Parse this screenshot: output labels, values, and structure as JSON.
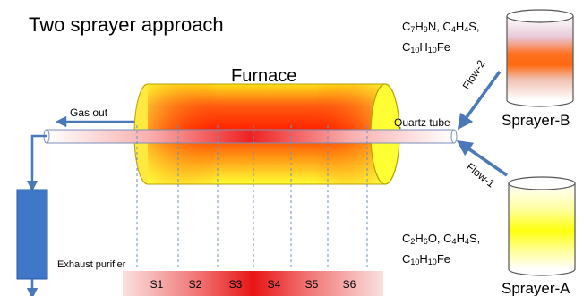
{
  "title": "Two sprayer approach",
  "furnace_label": "Furnace",
  "gas_out_label": "Gas out",
  "quartz_tube_label": "Quartz tube",
  "exhaust_label": "Exhaust purifier",
  "flow_1_label": "Flow-1",
  "flow_2_label": "Flow-2",
  "sprayer_a": {
    "label": "Sprayer-A",
    "formula_line1": [
      {
        "t": "C"
      },
      {
        "t": "2",
        "sub": true
      },
      {
        "t": "H"
      },
      {
        "t": "6",
        "sub": true
      },
      {
        "t": "O, C"
      },
      {
        "t": "4",
        "sub": true
      },
      {
        "t": "H"
      },
      {
        "t": "4",
        "sub": true
      },
      {
        "t": "S,"
      }
    ],
    "formula_line2": [
      {
        "t": "C"
      },
      {
        "t": "10",
        "sub": true
      },
      {
        "t": "H"
      },
      {
        "t": "10",
        "sub": true
      },
      {
        "t": "Fe"
      }
    ]
  },
  "sprayer_b": {
    "label": "Sprayer-B",
    "formula_line1": [
      {
        "t": "C"
      },
      {
        "t": "7",
        "sub": true
      },
      {
        "t": "H"
      },
      {
        "t": "9",
        "sub": true
      },
      {
        "t": "N, C"
      },
      {
        "t": "4",
        "sub": true
      },
      {
        "t": "H"
      },
      {
        "t": "4",
        "sub": true
      },
      {
        "t": "S,"
      }
    ],
    "formula_line2": [
      {
        "t": "C"
      },
      {
        "t": "10",
        "sub": true
      },
      {
        "t": "H"
      },
      {
        "t": "10",
        "sub": true
      },
      {
        "t": "Fe"
      }
    ]
  },
  "zones": [
    "S1",
    "S2",
    "S3",
    "S4",
    "S5",
    "S6"
  ],
  "colors": {
    "furnace_hot": "#ff2200",
    "furnace_cool": "#ffff33",
    "arrow_blue": "#4a78b8",
    "purifier_fill": "#3f78c8",
    "dashed_line": "#6f8fc0"
  }
}
